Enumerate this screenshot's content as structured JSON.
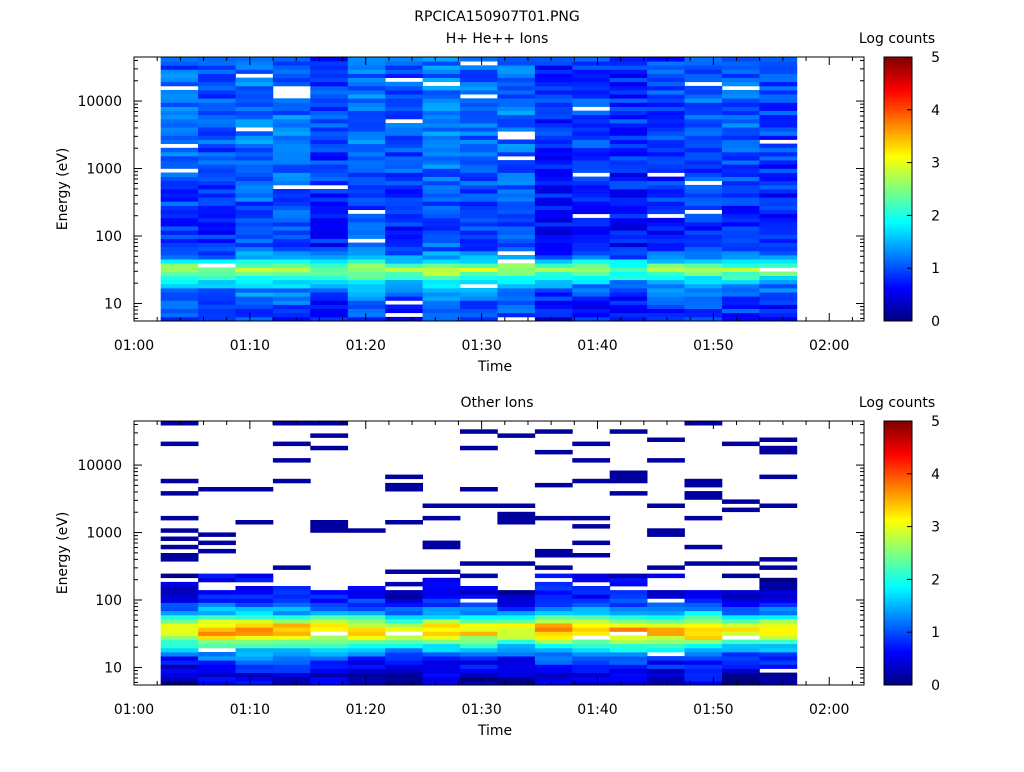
{
  "figure": {
    "title": "RPCICA150907T01.PNG"
  },
  "chart_data": [
    {
      "type": "heatmap",
      "title": "H+ He++ Ions",
      "xlabel": "Time",
      "ylabel": "Energy (eV)",
      "x_ticks": [
        "01:00",
        "01:10",
        "01:20",
        "01:30",
        "01:40",
        "01:50",
        "02:00"
      ],
      "y_ticks": [
        "10",
        "100",
        "1000",
        "10000"
      ],
      "x_range_minutes": [
        0,
        63
      ],
      "y_range_ev": [
        5.5,
        45000
      ],
      "y_scale": "log",
      "data_time_range_minutes": [
        2.3,
        57.2
      ],
      "n_time_bins": 17,
      "colorbar": {
        "label": "Log counts",
        "range": [
          0,
          5
        ],
        "ticks": [
          "0",
          "1",
          "2",
          "3",
          "4",
          "5"
        ]
      },
      "profile_log_counts": [
        {
          "e": 7,
          "v": 0.8
        },
        {
          "e": 9,
          "v": 0.9
        },
        {
          "e": 12,
          "v": 1.0
        },
        {
          "e": 16,
          "v": 1.2
        },
        {
          "e": 21,
          "v": 1.6
        },
        {
          "e": 27,
          "v": 2.3
        },
        {
          "e": 33,
          "v": 2.7
        },
        {
          "e": 40,
          "v": 2.0
        },
        {
          "e": 50,
          "v": 1.2
        },
        {
          "e": 65,
          "v": 0.9
        },
        {
          "e": 90,
          "v": 0.8
        },
        {
          "e": 150,
          "v": 0.8
        },
        {
          "e": 400,
          "v": 0.9
        },
        {
          "e": 1500,
          "v": 1.0
        },
        {
          "e": 6000,
          "v": 1.05
        },
        {
          "e": 40000,
          "v": 1.0
        }
      ]
    },
    {
      "type": "heatmap",
      "title": "Other Ions",
      "xlabel": "Time",
      "ylabel": "Energy (eV)",
      "x_ticks": [
        "01:00",
        "01:10",
        "01:20",
        "01:30",
        "01:40",
        "01:50",
        "02:00"
      ],
      "y_ticks": [
        "10",
        "100",
        "1000",
        "10000"
      ],
      "x_range_minutes": [
        0,
        63
      ],
      "y_range_ev": [
        5.5,
        45000
      ],
      "y_scale": "log",
      "data_time_range_minutes": [
        2.3,
        57.2
      ],
      "n_time_bins": 17,
      "colorbar": {
        "label": "Log counts",
        "range": [
          0,
          5
        ],
        "ticks": [
          "0",
          "1",
          "2",
          "3",
          "4",
          "5"
        ]
      },
      "profile_log_counts": [
        {
          "e": 7,
          "v": 0.3
        },
        {
          "e": 9,
          "v": 0.5
        },
        {
          "e": 12,
          "v": 0.7
        },
        {
          "e": 16,
          "v": 1.2
        },
        {
          "e": 21,
          "v": 1.9
        },
        {
          "e": 27,
          "v": 2.8
        },
        {
          "e": 33,
          "v": 3.3
        },
        {
          "e": 40,
          "v": 3.3
        },
        {
          "e": 50,
          "v": 2.4
        },
        {
          "e": 65,
          "v": 1.4
        },
        {
          "e": 90,
          "v": 0.8
        },
        {
          "e": 130,
          "v": 0.5
        },
        {
          "e": 200,
          "v": 0.3
        },
        {
          "e": 400,
          "v": 0.1
        },
        {
          "e": 2000,
          "v": 0.1
        },
        {
          "e": 40000,
          "v": 0.1
        }
      ]
    }
  ]
}
